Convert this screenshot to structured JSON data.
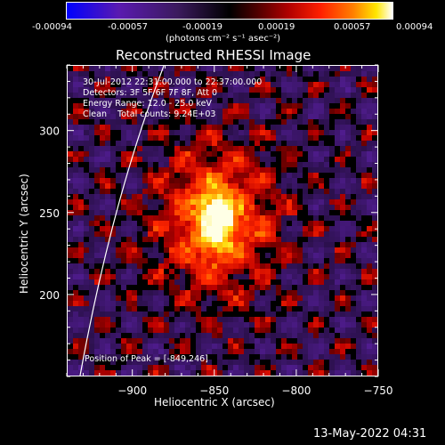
{
  "colorbar": {
    "ticks": [
      "-0.00094",
      "-0.00057",
      "-0.00019",
      "0.00019",
      "0.00057",
      "0.00094"
    ],
    "unit_label": "(photons cm⁻² s⁻¹ asec⁻²)",
    "colors": [
      "#0000ff",
      "#5a1ab0",
      "#3b1a5e",
      "#000000",
      "#b00000",
      "#ff8000",
      "#ffe600",
      "#ffffff"
    ]
  },
  "chart_data": {
    "type": "heatmap",
    "title": "Reconstructed RHESSI Image",
    "xlabel": "Heliocentric X (arcsec)",
    "ylabel": "Heliocentric Y (arcsec)",
    "xlim": [
      -940,
      -750
    ],
    "ylim": [
      150,
      340
    ],
    "xticks": [
      -900,
      -850,
      -800,
      -750
    ],
    "yticks": [
      200,
      250,
      300
    ],
    "xtick_labels": [
      "−900",
      "−850",
      "−800",
      "−750"
    ],
    "ytick_labels": [
      "200",
      "250",
      "300"
    ],
    "peak": {
      "x": -849,
      "y": 246
    },
    "limb_present": true,
    "annotations": [
      "30-Jul-2012 22:31:00.000 to 22:37:00.000",
      "Detectors: 3F 5F 6F 7F 8F, Att 0",
      "Energy Range: 12.0 - 25.0 keV",
      "Clean    Total counts: 9.24E+03",
      "Position of Peak = [-849,246]"
    ]
  },
  "footer": {
    "date": "13-May-2022 04:31"
  }
}
